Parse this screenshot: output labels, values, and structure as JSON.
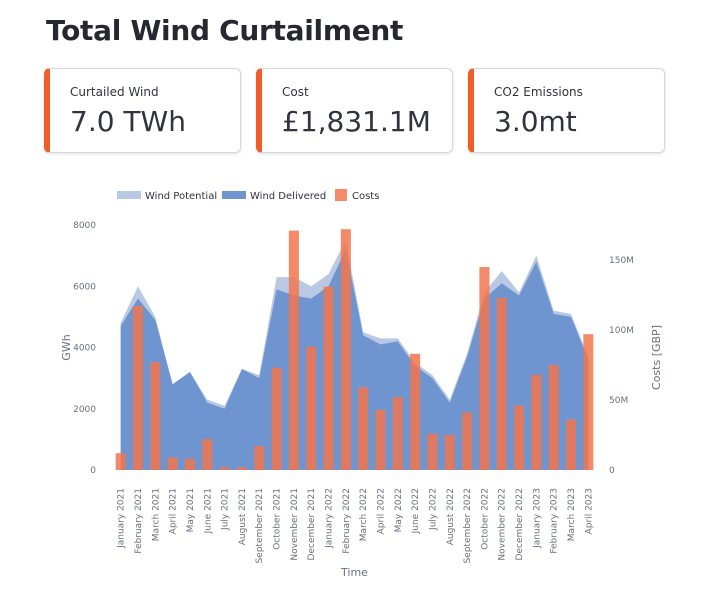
{
  "page": {
    "title": "Total Wind Curtailment"
  },
  "metrics": [
    {
      "label": "Curtailed Wind",
      "value": "7.0 TWh"
    },
    {
      "label": "Cost",
      "value": "£1,831.1M"
    },
    {
      "label": "CO2 Emissions",
      "value": "3.0mt"
    }
  ],
  "colors": {
    "accent": "#ef5d28",
    "wind_potential": "#b9c9e4",
    "wind_delivered": "#6e95cf",
    "costs": "#f2754e"
  },
  "chart_data": {
    "type": "bar",
    "xlabel": "Time",
    "ylabel": "GWh",
    "y2label": "Costs [GBP]",
    "ylim": [
      0,
      8000
    ],
    "y2lim": [
      0,
      175
    ],
    "yticks": [
      0,
      2000,
      4000,
      6000,
      8000
    ],
    "y2ticks": [
      0,
      50,
      100,
      150
    ],
    "y2ticklabels": [
      "0",
      "50M",
      "100M",
      "150M"
    ],
    "legend_position": "top-left",
    "categories": [
      "January 2021",
      "February 2021",
      "March 2021",
      "April 2021",
      "May 2021",
      "June 2021",
      "July 2021",
      "August 2021",
      "September 2021",
      "October 2021",
      "November 2021",
      "December 2021",
      "January 2022",
      "February 2022",
      "March 2022",
      "April 2022",
      "May 2022",
      "June 2022",
      "July 2022",
      "August 2022",
      "September 2022",
      "October 2022",
      "November 2022",
      "December 2022",
      "January 2023",
      "February 2023",
      "March 2023",
      "April 2023"
    ],
    "series": [
      {
        "name": "Wind Potential",
        "type": "area",
        "axis": "left",
        "values": [
          4800,
          6000,
          5000,
          2800,
          3200,
          2300,
          2100,
          3300,
          3100,
          6300,
          6300,
          6000,
          6400,
          7500,
          4500,
          4300,
          4300,
          3500,
          3100,
          2300,
          3800,
          5800,
          6500,
          5800,
          7000,
          5200,
          5100,
          3700
        ]
      },
      {
        "name": "Wind Delivered",
        "type": "area",
        "axis": "left",
        "values": [
          4700,
          5600,
          4900,
          2800,
          3200,
          2200,
          2000,
          3300,
          3000,
          5900,
          5700,
          5600,
          6000,
          7200,
          4400,
          4100,
          4200,
          3400,
          3000,
          2200,
          3700,
          5600,
          6100,
          5700,
          6800,
          5100,
          5000,
          3600
        ]
      },
      {
        "name": "Costs",
        "type": "bar",
        "axis": "right",
        "values": [
          12,
          117,
          77,
          9,
          8,
          22,
          2,
          2,
          17,
          73,
          171,
          88,
          131,
          172,
          59,
          43,
          52,
          83,
          26,
          25,
          41,
          145,
          123,
          46,
          68,
          75,
          36,
          97
        ]
      }
    ]
  }
}
